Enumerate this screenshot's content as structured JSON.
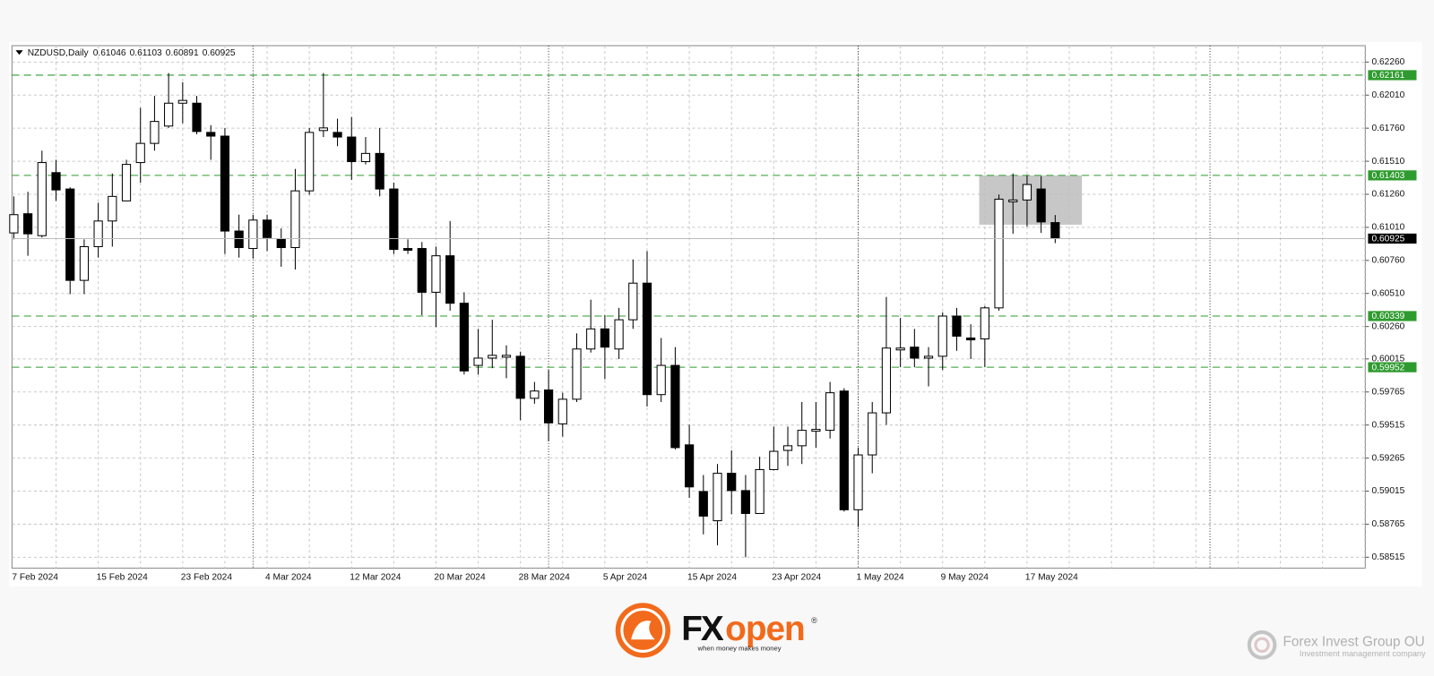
{
  "chart_data": {
    "type": "candlestick",
    "title": "NZDUSD,Daily",
    "categories": [
      "7 Feb 2024",
      null,
      null,
      null,
      null,
      null,
      "15 Feb 2024",
      null,
      null,
      null,
      null,
      null,
      "23 Feb 2024",
      null,
      null,
      null,
      null,
      null,
      "4 Mar 2024",
      null,
      null,
      null,
      null,
      null,
      "12 Mar 2024",
      null,
      null,
      null,
      null,
      null,
      "20 Mar 2024",
      null,
      null,
      null,
      null,
      null,
      "28 Mar 2024",
      null,
      null,
      null,
      null,
      null,
      "5 Apr 2024",
      null,
      null,
      null,
      null,
      null,
      "15 Apr 2024",
      null,
      null,
      null,
      null,
      null,
      "23 Apr 2024",
      null,
      null,
      null,
      null,
      null,
      "1 May 2024",
      null,
      null,
      null,
      null,
      null,
      "9 May 2024",
      null,
      null,
      null,
      null,
      null,
      "17 May 2024",
      null,
      null
    ],
    "open": [
      0.60968,
      0.61113,
      0.60947,
      0.61424,
      0.613,
      0.60609,
      0.60864,
      0.61058,
      0.6121,
      0.615,
      0.61645,
      0.61776,
      0.61949,
      0.61949,
      0.61728,
      0.617,
      0.60982,
      0.6085,
      0.61065,
      0.60919,
      0.60857,
      0.61286,
      0.61742,
      0.61728,
      0.61693,
      0.61507,
      0.61569,
      0.613,
      0.6085,
      0.6085,
      0.60519,
      0.60795,
      0.60436,
      0.59966,
      0.60021,
      0.60028,
      0.60035,
      0.59717,
      0.5978,
      0.59524,
      0.5971,
      0.6009,
      0.60242,
      0.6009,
      0.60311,
      0.60588,
      0.59745,
      0.59966,
      0.59365,
      0.59012,
      0.58791,
      0.5915,
      0.59019,
      0.58846,
      0.59178,
      0.59323,
      0.59358,
      0.59468,
      0.59475,
      0.59772,
      0.58874,
      0.59289,
      0.59607,
      0.60083,
      0.60104,
      0.60021,
      0.60035,
      0.60339,
      0.60173,
      0.60166,
      0.60401,
      0.61203,
      0.61217,
      0.613,
      0.61046
    ],
    "high": [
      0.61244,
      0.61279,
      0.6159,
      0.61521,
      0.61313,
      0.60919,
      0.61196,
      0.61417,
      0.61521,
      0.61914,
      0.62004,
      0.62177,
      0.62108,
      0.62004,
      0.61783,
      0.61762,
      0.61106,
      0.61106,
      0.61106,
      0.61002,
      0.61452,
      0.61762,
      0.62177,
      0.61832,
      0.61845,
      0.61693,
      0.61762,
      0.61348,
      0.60919,
      0.60899,
      0.60864,
      0.61058,
      0.60519,
      0.60242,
      0.60311,
      0.60118,
      0.6007,
      0.59841,
      0.59931,
      0.59759,
      0.60208,
      0.60463,
      0.60346,
      0.60401,
      0.60767,
      0.6083,
      0.60173,
      0.60104,
      0.59517,
      0.59137,
      0.5922,
      0.59323,
      0.59137,
      0.59275,
      0.59503,
      0.59503,
      0.59689,
      0.59689,
      0.59841,
      0.59793,
      0.59344,
      0.59689,
      0.60484,
      0.60325,
      0.60242,
      0.60104,
      0.60367,
      0.60401,
      0.60277,
      0.60415,
      0.61258,
      0.61417,
      0.61403,
      0.61396,
      0.61103
    ],
    "low": [
      0.60919,
      0.60795,
      0.60933,
      0.6121,
      0.60505,
      0.60505,
      0.60781,
      0.60864,
      0.6121,
      0.61348,
      0.6159,
      0.61762,
      0.61797,
      0.61714,
      0.61521,
      0.60809,
      0.60781,
      0.60774,
      0.6083,
      0.60712,
      0.60691,
      0.61258,
      0.61693,
      0.61624,
      0.61369,
      0.61486,
      0.61244,
      0.60809,
      0.60809,
      0.60346,
      0.60256,
      0.6038,
      0.59897,
      0.59897,
      0.59945,
      0.59869,
      0.59551,
      0.59676,
      0.59392,
      0.59427,
      0.59689,
      0.60063,
      0.59862,
      0.60014,
      0.60242,
      0.59655,
      0.59689,
      0.5933,
      0.58964,
      0.58688,
      0.58605,
      0.5884,
      0.58515,
      0.58846,
      0.59171,
      0.59206,
      0.5922,
      0.59344,
      0.59413,
      0.5886,
      0.58743,
      0.5915,
      0.59517,
      0.59952,
      0.59952,
      0.59807,
      0.59931,
      0.60076,
      0.60014,
      0.59952,
      0.6038,
      0.60961,
      0.61016,
      0.60968,
      0.60891
    ],
    "close": [
      0.61106,
      0.60961,
      0.615,
      0.61293,
      0.60609,
      0.60864,
      0.61058,
      0.61244,
      0.61486,
      0.61645,
      0.61811,
      0.61949,
      0.6197,
      0.61735,
      0.617,
      0.60982,
      0.60857,
      0.61065,
      0.60933,
      0.60857,
      0.61286,
      0.61728,
      0.61762,
      0.61693,
      0.61507,
      0.61569,
      0.613,
      0.60843,
      0.60837,
      0.60519,
      0.60795,
      0.60436,
      0.59924,
      0.60021,
      0.60042,
      0.60042,
      0.59717,
      0.59772,
      0.59531,
      0.5971,
      0.6009,
      0.60242,
      0.60104,
      0.60311,
      0.60588,
      0.59745,
      0.59966,
      0.59344,
      0.59047,
      0.58826,
      0.5915,
      0.59019,
      0.58846,
      0.59178,
      0.59316,
      0.59358,
      0.59475,
      0.59482,
      0.59759,
      0.58874,
      0.59289,
      0.59607,
      0.60097,
      0.60097,
      0.60021,
      0.60035,
      0.60339,
      0.60187,
      0.60159,
      0.60401,
      0.61223,
      0.61217,
      0.61334,
      0.61051,
      0.60925
    ],
    "up_color": "#ffffff",
    "down_color": "#000000",
    "ylim": [
      0.58432,
      0.62384
    ],
    "yticks": [
      {
        "value": 0.6226,
        "label": "0.62260"
      },
      {
        "value": 0.6201,
        "label": "0.62010"
      },
      {
        "value": 0.6176,
        "label": "0.61760"
      },
      {
        "value": 0.6151,
        "label": "0.61510"
      },
      {
        "value": 0.6126,
        "label": "0.61260"
      },
      {
        "value": 0.6101,
        "label": "0.61010"
      },
      {
        "value": 0.6076,
        "label": "0.60760"
      },
      {
        "value": 0.6051,
        "label": "0.60510"
      },
      {
        "value": 0.6026,
        "label": "0.60260"
      },
      0.60015,
      0.59765,
      0.59515,
      0.59265,
      0.59015,
      0.58765,
      0.58515
    ],
    "grid": true,
    "levels": [
      0.62161,
      0.61403,
      0.60339,
      0.59952
    ],
    "level_color": "#2e9b2e",
    "zone": {
      "high": 0.61403,
      "low": 0.6103
    }
  },
  "footer": {
    "brand_a": "FX",
    "brand_b": "open",
    "registered": "®",
    "tagline": "when money makes money",
    "company": "Forex Invest Group OU",
    "company_sub": "Investment management company"
  }
}
